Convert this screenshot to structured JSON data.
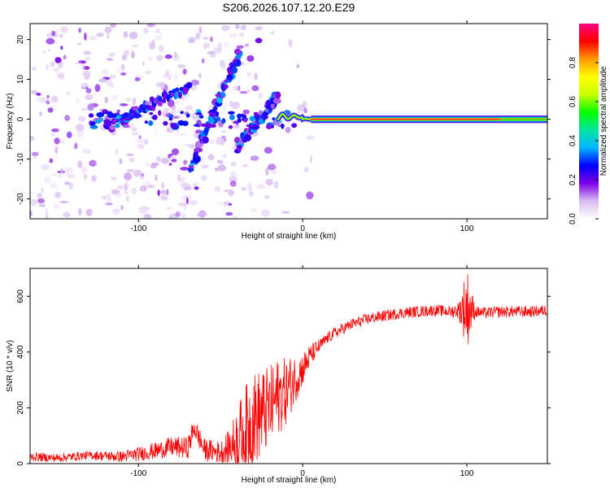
{
  "chart_data": [
    {
      "type": "heatmap",
      "title": "S206.2026.107.12.20.E29",
      "xlabel": "Height of straight line (km)",
      "ylabel": "Frequency (Hz)",
      "xlim": [
        -166,
        149
      ],
      "ylim": [
        -25,
        24
      ],
      "x_ticks": [
        -100,
        0,
        100
      ],
      "y_ticks": [
        -20,
        -10,
        0,
        10,
        20
      ],
      "colorbar": {
        "label": "Normalized spectral amplitude",
        "range": [
          0,
          1
        ],
        "ticks": [
          "0.0",
          "0.2",
          "0.4",
          "0.6",
          "0.8"
        ],
        "colors": [
          "#ffffff",
          "#d8bcf0",
          "#7a00e6",
          "#0000ff",
          "#00b4ff",
          "#00e6a0",
          "#00ff00",
          "#c8ff00",
          "#ffff00",
          "#ff9900",
          "#ff0000",
          "#ff0080"
        ]
      },
      "main_line": {
        "x_start": 0,
        "x_end": 149,
        "frequency": 0,
        "amplitude": 1.0
      },
      "chirp_streaks": [
        {
          "x_from": -120,
          "x_to": -70,
          "f_from": -2,
          "f_to": 8
        },
        {
          "x_from": -68,
          "x_to": -38,
          "f_from": -12,
          "f_to": 17
        },
        {
          "x_from": -40,
          "x_to": -15,
          "f_from": -7,
          "f_to": 6
        }
      ]
    },
    {
      "type": "line",
      "title": "",
      "xlabel": "Height of straight line (km)",
      "ylabel": "SNR (10 * v/v)",
      "xlim": [
        -166,
        149
      ],
      "ylim": [
        0,
        700
      ],
      "x_ticks": [
        -100,
        0,
        100
      ],
      "y_ticks": [
        0,
        200,
        400,
        600
      ],
      "series": [
        {
          "name": "SNR",
          "color": "#ff0000",
          "x": [
            -166,
            -150,
            -130,
            -110,
            -90,
            -80,
            -70,
            -66,
            -60,
            -50,
            -45,
            -40,
            -35,
            -30,
            -25,
            -20,
            -15,
            -10,
            -5,
            0,
            5,
            10,
            15,
            20,
            30,
            40,
            50,
            60,
            70,
            80,
            90,
            95,
            100,
            105,
            110,
            120,
            130,
            140,
            149
          ],
          "y": [
            25,
            20,
            30,
            25,
            45,
            60,
            55,
            130,
            50,
            40,
            60,
            80,
            120,
            160,
            180,
            200,
            240,
            260,
            300,
            340,
            390,
            420,
            450,
            470,
            500,
            520,
            530,
            540,
            545,
            550,
            545,
            550,
            560,
            545,
            540,
            545,
            545,
            545,
            550
          ],
          "noise_amplitude": [
            15,
            15,
            15,
            20,
            30,
            35,
            40,
            40,
            40,
            40,
            60,
            120,
            160,
            170,
            160,
            150,
            140,
            120,
            90,
            60,
            40,
            25,
            20,
            20,
            20,
            20,
            20,
            20,
            20,
            20,
            20,
            30,
            150,
            20,
            20,
            20,
            20,
            20,
            20
          ]
        }
      ]
    }
  ]
}
